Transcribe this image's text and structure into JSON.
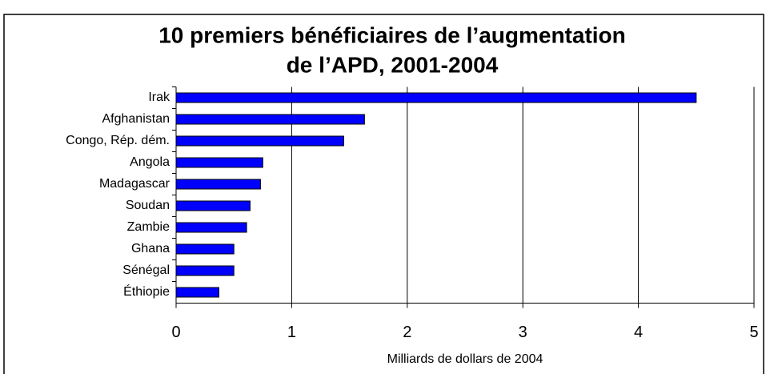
{
  "chart_data": {
    "type": "barh",
    "title": "10 premiers bénéficiaires de l’augmentation",
    "title_line2": "de l’APD, 2001-2004",
    "xlabel": "Milliards de dollars de 2004",
    "categories": [
      "Irak",
      "Afghanistan",
      "Congo, Rép. dém.",
      "Angola",
      "Madagascar",
      "Soudan",
      "Zambie",
      "Ghana",
      "Sénégal",
      "Éthiopie"
    ],
    "values": [
      4.5,
      1.63,
      1.45,
      0.75,
      0.73,
      0.64,
      0.61,
      0.5,
      0.5,
      0.37
    ],
    "color": "#0000ff",
    "xlim": [
      0,
      5
    ],
    "xticks": [
      0,
      1,
      2,
      3,
      4,
      5
    ],
    "grid": true
  }
}
